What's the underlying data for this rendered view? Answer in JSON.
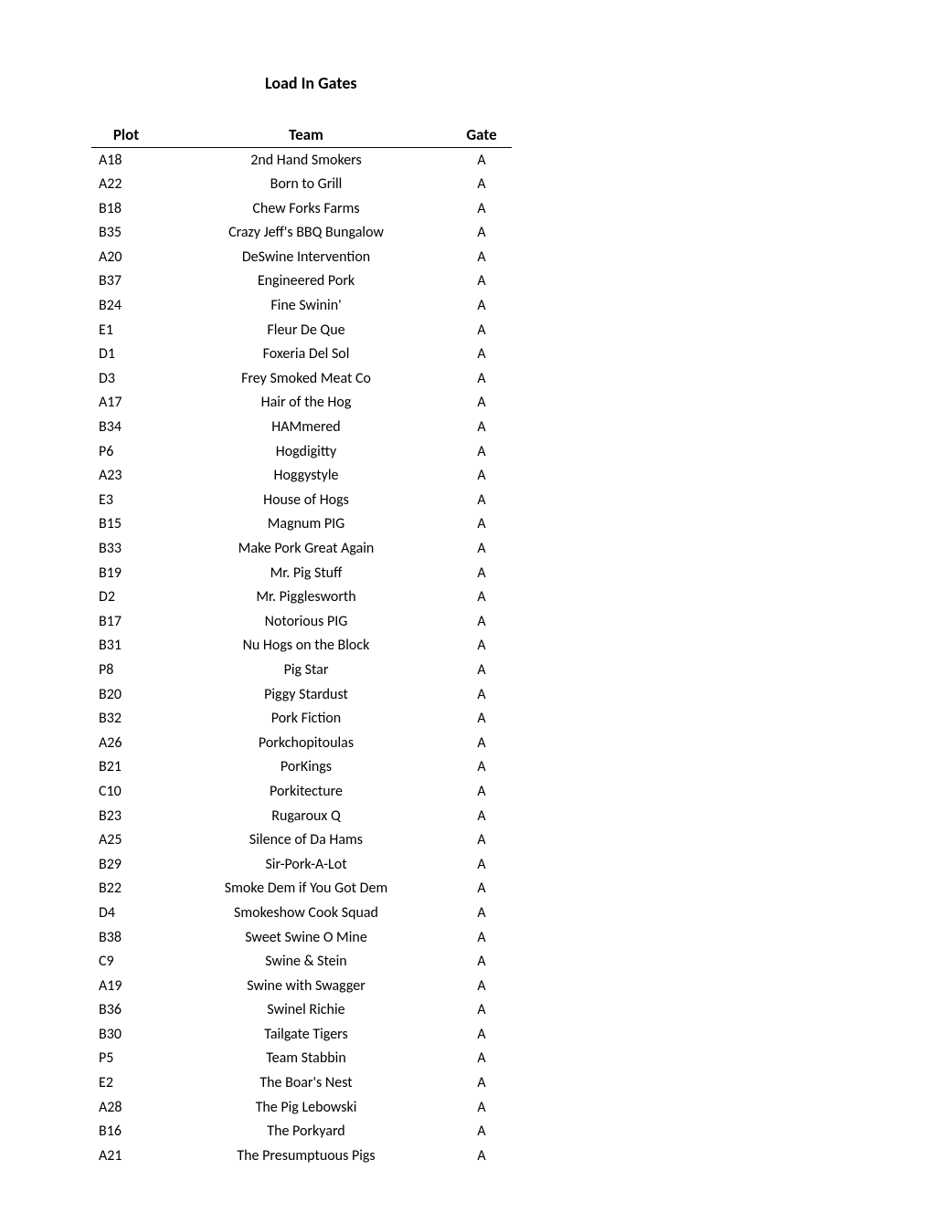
{
  "title": "Load In Gates",
  "table": {
    "columns": [
      "Plot",
      "Team",
      "Gate"
    ],
    "column_align": [
      "left",
      "center",
      "center"
    ],
    "header_fontsize": 17,
    "body_fontsize": 16,
    "border_color": "#000000",
    "rows": [
      {
        "plot": "A18",
        "team": "2nd Hand Smokers",
        "gate": "A"
      },
      {
        "plot": "A22",
        "team": "Born to Grill",
        "gate": "A"
      },
      {
        "plot": "B18",
        "team": "Chew Forks Farms",
        "gate": "A"
      },
      {
        "plot": "B35",
        "team": "Crazy Jeff's BBQ Bungalow",
        "gate": "A"
      },
      {
        "plot": "A20",
        "team": "DeSwine Intervention",
        "gate": "A"
      },
      {
        "plot": "B37",
        "team": "Engineered Pork",
        "gate": "A"
      },
      {
        "plot": "B24",
        "team": "Fine Swinin'",
        "gate": "A"
      },
      {
        "plot": "E1",
        "team": "Fleur De Que",
        "gate": "A"
      },
      {
        "plot": "D1",
        "team": "Foxeria Del Sol",
        "gate": "A"
      },
      {
        "plot": "D3",
        "team": "Frey Smoked Meat Co",
        "gate": "A"
      },
      {
        "plot": "A17",
        "team": "Hair of the Hog",
        "gate": "A"
      },
      {
        "plot": "B34",
        "team": "HAMmered",
        "gate": "A"
      },
      {
        "plot": "P6",
        "team": "Hogdigitty",
        "gate": "A"
      },
      {
        "plot": "A23",
        "team": "Hoggystyle",
        "gate": "A"
      },
      {
        "plot": "E3",
        "team": "House of Hogs",
        "gate": "A"
      },
      {
        "plot": "B15",
        "team": "Magnum PIG",
        "gate": "A"
      },
      {
        "plot": "B33",
        "team": "Make Pork Great Again",
        "gate": "A"
      },
      {
        "plot": "B19",
        "team": "Mr. Pig Stuff",
        "gate": "A"
      },
      {
        "plot": "D2",
        "team": "Mr. Pigglesworth",
        "gate": "A"
      },
      {
        "plot": "B17",
        "team": "Notorious PIG",
        "gate": "A"
      },
      {
        "plot": "B31",
        "team": "Nu Hogs on the Block",
        "gate": "A"
      },
      {
        "plot": "P8",
        "team": "Pig Star",
        "gate": "A"
      },
      {
        "plot": "B20",
        "team": "Piggy Stardust",
        "gate": "A"
      },
      {
        "plot": "B32",
        "team": "Pork Fiction",
        "gate": "A"
      },
      {
        "plot": "A26",
        "team": "Porkchopitoulas",
        "gate": "A"
      },
      {
        "plot": "B21",
        "team": "PorKings",
        "gate": "A"
      },
      {
        "plot": "C10",
        "team": "Porkitecture",
        "gate": "A"
      },
      {
        "plot": "B23",
        "team": "Rugaroux Q",
        "gate": "A"
      },
      {
        "plot": "A25",
        "team": "Silence of Da Hams",
        "gate": "A"
      },
      {
        "plot": "B29",
        "team": "Sir-Pork-A-Lot",
        "gate": "A"
      },
      {
        "plot": "B22",
        "team": "Smoke Dem if You Got Dem",
        "gate": "A"
      },
      {
        "plot": "D4",
        "team": "Smokeshow Cook Squad",
        "gate": "A"
      },
      {
        "plot": "B38",
        "team": "Sweet Swine O Mine",
        "gate": "A"
      },
      {
        "plot": "C9",
        "team": "Swine & Stein",
        "gate": "A"
      },
      {
        "plot": "A19",
        "team": "Swine with Swagger",
        "gate": "A"
      },
      {
        "plot": "B36",
        "team": "Swinel Richie",
        "gate": "A"
      },
      {
        "plot": "B30",
        "team": "Tailgate Tigers",
        "gate": "A"
      },
      {
        "plot": "P5",
        "team": "Team Stabbin",
        "gate": "A"
      },
      {
        "plot": "E2",
        "team": "The Boar's Nest",
        "gate": "A"
      },
      {
        "plot": "A28",
        "team": "The Pig Lebowski",
        "gate": "A"
      },
      {
        "plot": "B16",
        "team": "The Porkyard",
        "gate": "A"
      },
      {
        "plot": "A21",
        "team": "The Presumptuous Pigs",
        "gate": "A"
      }
    ]
  },
  "styling": {
    "background_color": "#ffffff",
    "text_color": "#000000",
    "font_family": "Calibri, Arial, sans-serif",
    "title_fontsize": 18,
    "title_weight": "bold"
  }
}
